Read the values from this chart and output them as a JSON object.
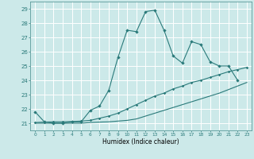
{
  "xlabel": "Humidex (Indice chaleur)",
  "xlim": [
    -0.5,
    23.5
  ],
  "ylim": [
    20.5,
    29.5
  ],
  "xticks": [
    0,
    1,
    2,
    3,
    4,
    5,
    6,
    7,
    8,
    9,
    10,
    11,
    12,
    13,
    14,
    15,
    16,
    17,
    18,
    19,
    20,
    21,
    22,
    23
  ],
  "yticks": [
    21,
    22,
    23,
    24,
    25,
    26,
    27,
    28,
    29
  ],
  "bg_color": "#cce9e9",
  "grid_color": "#ffffff",
  "line_color": "#2a7a7a",
  "line1_x": [
    0,
    1,
    2,
    3,
    4,
    5,
    6,
    7,
    8,
    9,
    10,
    11,
    12,
    13,
    14,
    15,
    16,
    17,
    18,
    19,
    20,
    21,
    22
  ],
  "line1_y": [
    21.8,
    21.1,
    21.0,
    21.0,
    21.1,
    21.1,
    21.9,
    22.2,
    23.3,
    25.6,
    27.5,
    27.4,
    28.8,
    28.9,
    27.5,
    25.7,
    25.2,
    26.7,
    26.5,
    25.3,
    25.0,
    25.0,
    24.0
  ],
  "line2_x": [
    0,
    1,
    2,
    3,
    4,
    5,
    6,
    7,
    8,
    9,
    10,
    11,
    12,
    13,
    14,
    15,
    16,
    17,
    18,
    19,
    20,
    21,
    22,
    23
  ],
  "line2_y": [
    21.05,
    21.08,
    21.1,
    21.1,
    21.12,
    21.15,
    21.2,
    21.35,
    21.5,
    21.7,
    22.0,
    22.3,
    22.6,
    22.9,
    23.1,
    23.4,
    23.6,
    23.85,
    24.0,
    24.2,
    24.4,
    24.6,
    24.75,
    24.9
  ],
  "line3_x": [
    0,
    1,
    2,
    3,
    4,
    5,
    6,
    7,
    8,
    9,
    10,
    11,
    12,
    13,
    14,
    15,
    16,
    17,
    18,
    19,
    20,
    21,
    22,
    23
  ],
  "line3_y": [
    21.0,
    21.0,
    21.0,
    21.0,
    21.0,
    21.0,
    21.05,
    21.08,
    21.1,
    21.15,
    21.2,
    21.3,
    21.5,
    21.7,
    21.9,
    22.1,
    22.3,
    22.5,
    22.7,
    22.9,
    23.1,
    23.35,
    23.6,
    23.85
  ]
}
